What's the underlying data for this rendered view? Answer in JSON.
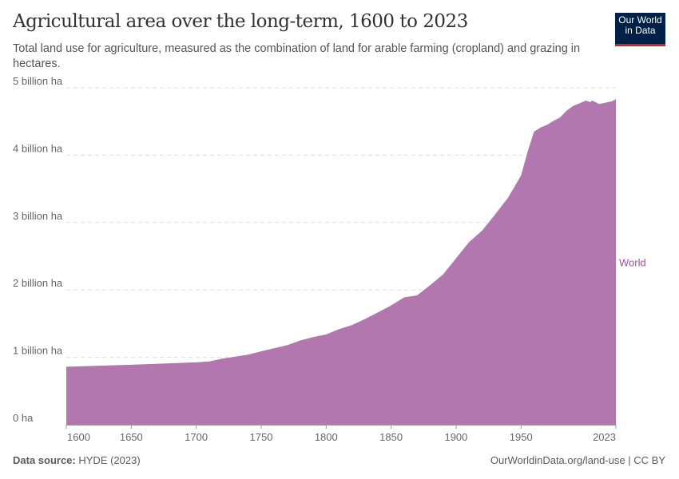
{
  "header": {
    "title": "Agricultural area over the long-term, 1600 to 2023",
    "subtitle": "Total land use for agriculture, measured as the combination of land for arable farming (cropland) and grazing in hectares.",
    "logo_line1": "Our World",
    "logo_line2": "in Data"
  },
  "footer": {
    "source_label": "Data source:",
    "source": "HYDE (2023)",
    "url": "OurWorldinData.org/land-use | CC BY"
  },
  "colors": {
    "area": "#b277af",
    "label": "#a2559c",
    "grid": "#dddddd"
  },
  "chart_data": {
    "type": "area",
    "title": "Agricultural area over the long-term, 1600 to 2023",
    "xlabel": "",
    "ylabel": "",
    "xlim": [
      1600,
      2023
    ],
    "ylim": [
      0,
      5
    ],
    "x_ticks": [
      1600,
      1650,
      1700,
      1750,
      1800,
      1850,
      1900,
      1950,
      2023
    ],
    "y_ticks": [
      {
        "v": 0,
        "label": "0 ha"
      },
      {
        "v": 1,
        "label": "1 billion ha"
      },
      {
        "v": 2,
        "label": "2 billion ha"
      },
      {
        "v": 3,
        "label": "3 billion ha"
      },
      {
        "v": 4,
        "label": "4 billion ha"
      },
      {
        "v": 5,
        "label": "5 billion ha"
      }
    ],
    "grid": true,
    "series": [
      {
        "name": "World",
        "unit": "billion ha",
        "x": [
          1600,
          1650,
          1700,
          1710,
          1720,
          1740,
          1750,
          1770,
          1780,
          1790,
          1800,
          1810,
          1820,
          1830,
          1840,
          1850,
          1860,
          1870,
          1880,
          1890,
          1900,
          1910,
          1920,
          1930,
          1940,
          1950,
          1955,
          1960,
          1965,
          1970,
          1975,
          1980,
          1985,
          1990,
          1995,
          2000,
          2003,
          2005,
          2010,
          2015,
          2020,
          2023
        ],
        "y": [
          0.86,
          0.89,
          0.925,
          0.94,
          0.98,
          1.04,
          1.09,
          1.18,
          1.25,
          1.3,
          1.34,
          1.42,
          1.48,
          1.57,
          1.67,
          1.77,
          1.89,
          1.92,
          2.07,
          2.23,
          2.47,
          2.71,
          2.88,
          3.12,
          3.37,
          3.7,
          4.05,
          4.35,
          4.41,
          4.45,
          4.51,
          4.56,
          4.66,
          4.73,
          4.77,
          4.81,
          4.79,
          4.81,
          4.76,
          4.78,
          4.8,
          4.83
        ]
      }
    ]
  }
}
